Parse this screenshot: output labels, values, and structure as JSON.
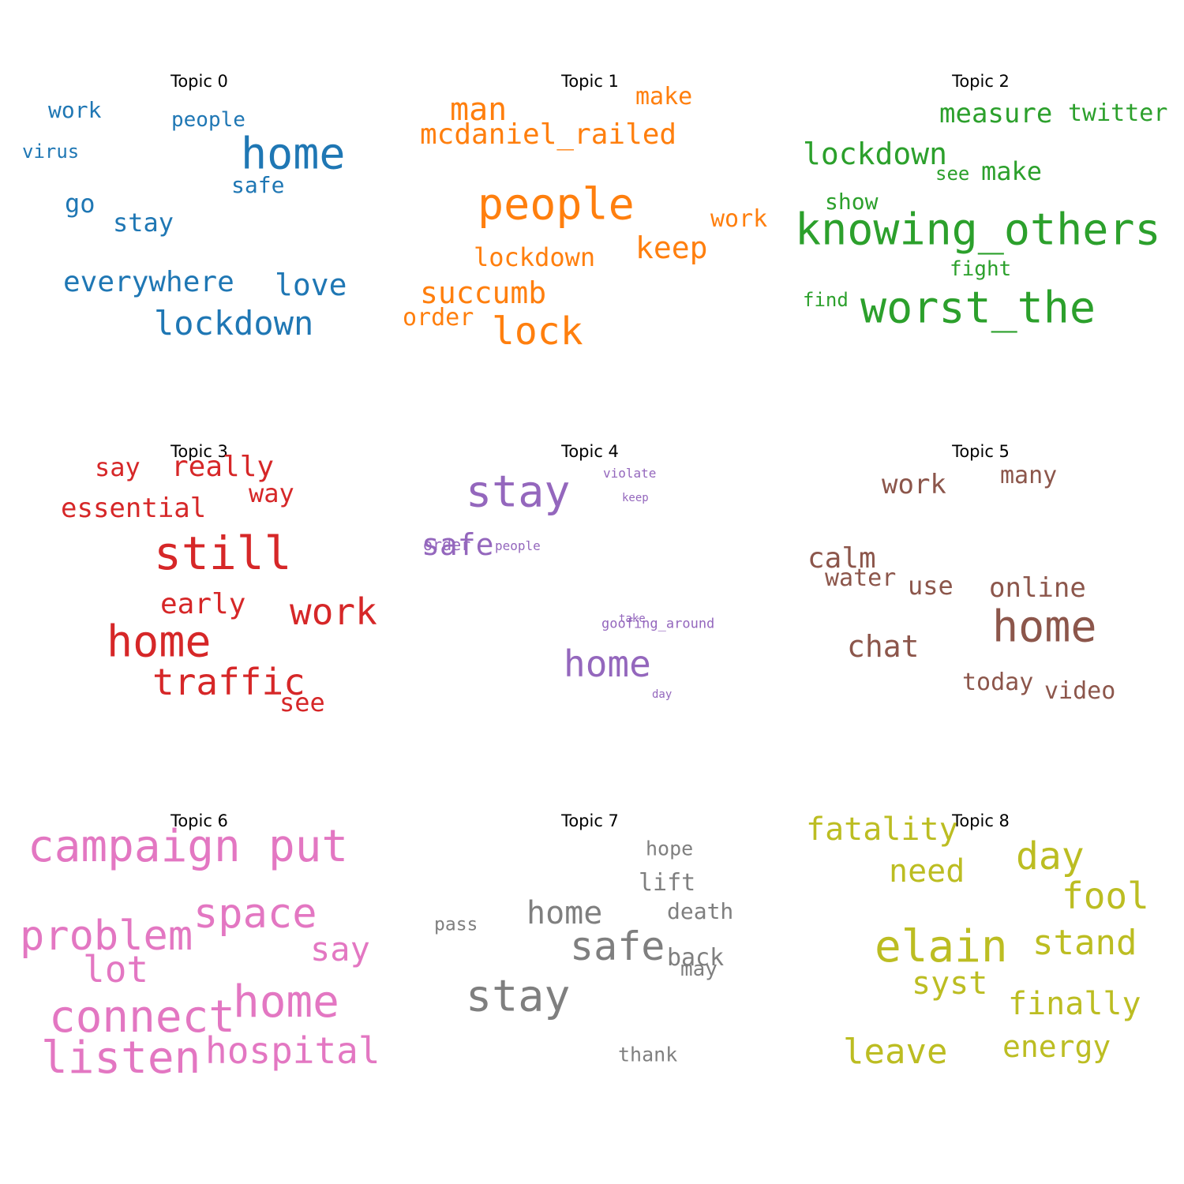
{
  "chart_data": [
    {
      "type": "wordcloud",
      "title": "Topic 0",
      "color": "#1f77b4",
      "words": [
        {
          "text": "home",
          "weight": 55
        },
        {
          "text": "lockdown",
          "weight": 42
        },
        {
          "text": "everywhere",
          "weight": 36
        },
        {
          "text": "love",
          "weight": 38
        },
        {
          "text": "stay",
          "weight": 32
        },
        {
          "text": "go",
          "weight": 32
        },
        {
          "text": "safe",
          "weight": 28
        },
        {
          "text": "people",
          "weight": 26
        },
        {
          "text": "work",
          "weight": 28
        },
        {
          "text": "virus",
          "weight": 24
        }
      ]
    },
    {
      "type": "wordcloud",
      "title": "Topic 1",
      "color": "#ff7f0e",
      "words": [
        {
          "text": "people",
          "weight": 55
        },
        {
          "text": "lock",
          "weight": 48
        },
        {
          "text": "man",
          "weight": 40
        },
        {
          "text": "mcdaniel_railed",
          "weight": 36
        },
        {
          "text": "keep",
          "weight": 38
        },
        {
          "text": "succumb",
          "weight": 38
        },
        {
          "text": "lockdown",
          "weight": 32
        },
        {
          "text": "make",
          "weight": 30
        },
        {
          "text": "work",
          "weight": 30
        },
        {
          "text": "order",
          "weight": 30
        }
      ]
    },
    {
      "type": "wordcloud",
      "title": "Topic 2",
      "color": "#2ca02c",
      "words": [
        {
          "text": "knowing_others",
          "weight": 55
        },
        {
          "text": "worst_the",
          "weight": 55
        },
        {
          "text": "lockdown",
          "weight": 38
        },
        {
          "text": "measure",
          "weight": 34
        },
        {
          "text": "twitter",
          "weight": 30
        },
        {
          "text": "make",
          "weight": 32
        },
        {
          "text": "show",
          "weight": 28
        },
        {
          "text": "see",
          "weight": 24
        },
        {
          "text": "fight",
          "weight": 26
        },
        {
          "text": "find",
          "weight": 24
        }
      ]
    },
    {
      "type": "wordcloud",
      "title": "Topic 3",
      "color": "#d62728",
      "words": [
        {
          "text": "still",
          "weight": 58
        },
        {
          "text": "home",
          "weight": 55
        },
        {
          "text": "work",
          "weight": 46
        },
        {
          "text": "traffic",
          "weight": 46
        },
        {
          "text": "really",
          "weight": 36
        },
        {
          "text": "essential",
          "weight": 34
        },
        {
          "text": "early",
          "weight": 36
        },
        {
          "text": "say",
          "weight": 32
        },
        {
          "text": "way",
          "weight": 32
        },
        {
          "text": "see",
          "weight": 32
        }
      ]
    },
    {
      "type": "wordcloud",
      "title": "Topic 4",
      "color": "#9467bd",
      "words": [
        {
          "text": "stay",
          "weight": 55
        },
        {
          "text": "home",
          "weight": 46
        },
        {
          "text": "safe",
          "weight": 38
        },
        {
          "text": "order",
          "weight": 20
        },
        {
          "text": "people",
          "weight": 16
        },
        {
          "text": "violate",
          "weight": 16
        },
        {
          "text": "keep",
          "weight": 14
        },
        {
          "text": "goofing_around",
          "weight": 17
        },
        {
          "text": "take",
          "weight": 14
        },
        {
          "text": "day",
          "weight": 14
        }
      ]
    },
    {
      "type": "wordcloud",
      "title": "Topic 5",
      "color": "#8c564b",
      "words": [
        {
          "text": "home",
          "weight": 55
        },
        {
          "text": "chat",
          "weight": 38
        },
        {
          "text": "calm",
          "weight": 36
        },
        {
          "text": "online",
          "weight": 34
        },
        {
          "text": "work",
          "weight": 34
        },
        {
          "text": "use",
          "weight": 32
        },
        {
          "text": "water",
          "weight": 30
        },
        {
          "text": "many",
          "weight": 30
        },
        {
          "text": "today",
          "weight": 30
        },
        {
          "text": "video",
          "weight": 30
        }
      ]
    },
    {
      "type": "wordcloud",
      "title": "Topic 6",
      "color": "#e377c2",
      "words": [
        {
          "text": "campaign",
          "weight": 56
        },
        {
          "text": "put",
          "weight": 56
        },
        {
          "text": "problem",
          "weight": 52
        },
        {
          "text": "space",
          "weight": 52
        },
        {
          "text": "connect",
          "weight": 56
        },
        {
          "text": "listen",
          "weight": 56
        },
        {
          "text": "home",
          "weight": 56
        },
        {
          "text": "hospital",
          "weight": 46
        },
        {
          "text": "lot",
          "weight": 46
        },
        {
          "text": "say",
          "weight": 42
        }
      ]
    },
    {
      "type": "wordcloud",
      "title": "Topic 7",
      "color": "#7f7f7f",
      "words": [
        {
          "text": "stay",
          "weight": 55
        },
        {
          "text": "safe",
          "weight": 50
        },
        {
          "text": "home",
          "weight": 40
        },
        {
          "text": "lift",
          "weight": 30
        },
        {
          "text": "death",
          "weight": 28
        },
        {
          "text": "back",
          "weight": 30
        },
        {
          "text": "may",
          "weight": 26
        },
        {
          "text": "hope",
          "weight": 25
        },
        {
          "text": "thank",
          "weight": 25
        },
        {
          "text": "pass",
          "weight": 23
        }
      ]
    },
    {
      "type": "wordcloud",
      "title": "Topic 8",
      "color": "#bcbd22",
      "words": [
        {
          "text": "elain",
          "weight": 56
        },
        {
          "text": "fatality",
          "weight": 40
        },
        {
          "text": "need",
          "weight": 40
        },
        {
          "text": "day",
          "weight": 48
        },
        {
          "text": "fool",
          "weight": 46
        },
        {
          "text": "stand",
          "weight": 44
        },
        {
          "text": "syst",
          "weight": 40
        },
        {
          "text": "finally",
          "weight": 40
        },
        {
          "text": "leave",
          "weight": 44
        },
        {
          "text": "energy",
          "weight": 38
        }
      ]
    }
  ]
}
